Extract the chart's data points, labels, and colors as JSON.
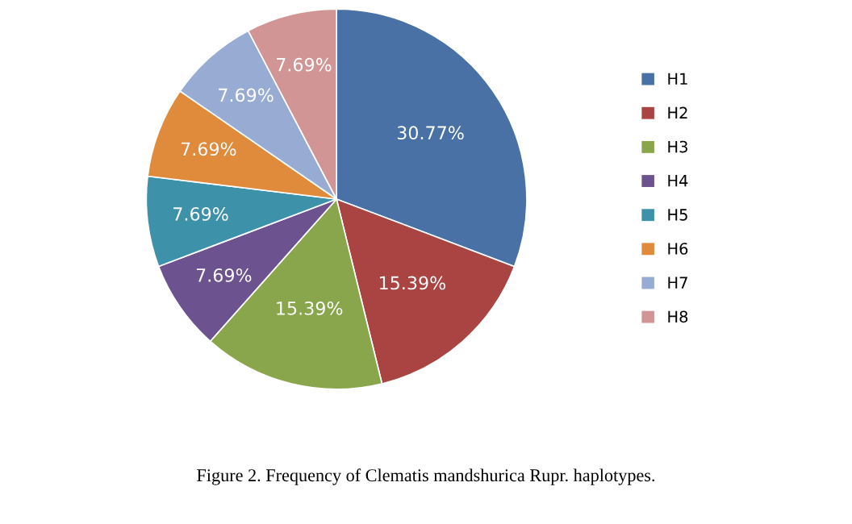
{
  "chart_data": {
    "type": "pie",
    "categories": [
      "H1",
      "H2",
      "H3",
      "H4",
      "H5",
      "H6",
      "H7",
      "H8"
    ],
    "values": [
      30.77,
      15.39,
      15.39,
      7.69,
      7.69,
      7.69,
      7.69,
      7.69
    ],
    "colors": [
      "#4a71a5",
      "#a94442",
      "#8aa64c",
      "#6c5390",
      "#3d92aa",
      "#e08a3c",
      "#98acd3",
      "#d09594"
    ],
    "value_labels": [
      "30.77%",
      "15.39%",
      "15.39%",
      "7.69%",
      "7.69%",
      "7.69%",
      "7.69%",
      "7.69%"
    ],
    "legend": "right",
    "annotations": [
      "Figure 2. Frequency of Clematis mandshurica Rupr. haplotypes."
    ]
  }
}
